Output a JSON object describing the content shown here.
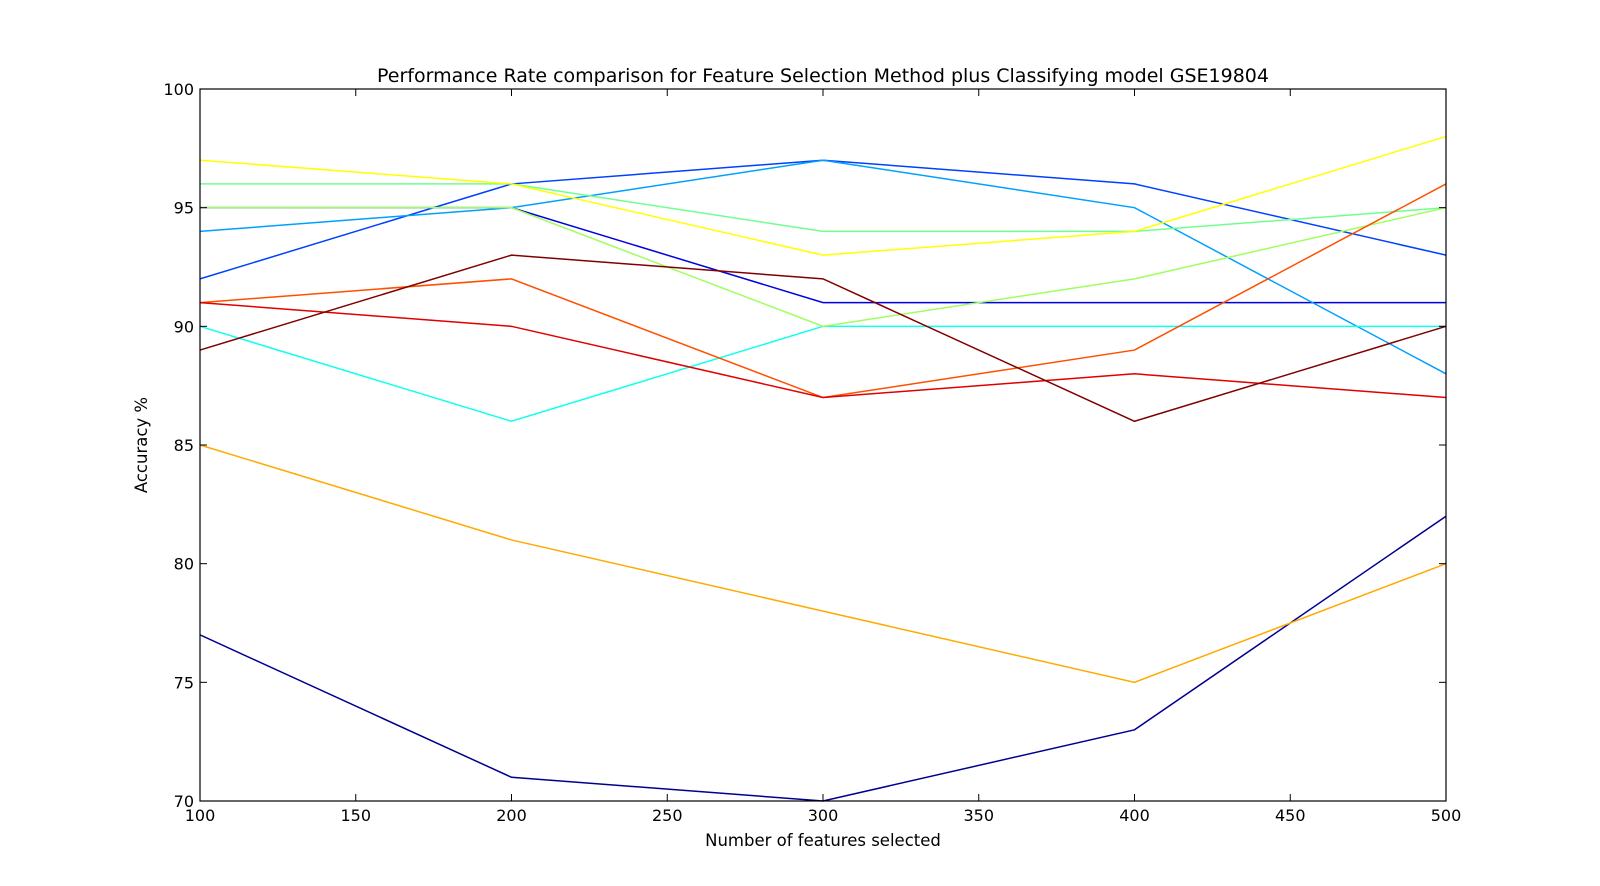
{
  "chart_data": {
    "type": "line",
    "title": "Performance Rate comparison for Feature Selection Method plus Classifying model GSE19804",
    "xlabel": "Number of features selected",
    "ylabel": "Accuracy %",
    "xlim": [
      100,
      500
    ],
    "ylim": [
      70,
      100
    ],
    "x_ticks": [
      100,
      150,
      200,
      250,
      300,
      350,
      400,
      450,
      500
    ],
    "y_ticks": [
      70,
      75,
      80,
      85,
      90,
      95,
      100
    ],
    "grid": false,
    "legend": "none",
    "x": [
      100,
      200,
      300,
      400,
      500
    ],
    "series": [
      {
        "color": "#00008f",
        "values": [
          77,
          71,
          70,
          73,
          82
        ]
      },
      {
        "color": "#0000e0",
        "values": [
          95,
          95,
          91,
          91,
          91
        ]
      },
      {
        "color": "#0040ff",
        "values": [
          92,
          96,
          97,
          96,
          93
        ]
      },
      {
        "color": "#00a0ff",
        "values": [
          94,
          95,
          97,
          95,
          88
        ]
      },
      {
        "color": "#10ffef",
        "values": [
          90,
          86,
          90,
          90,
          90
        ]
      },
      {
        "color": "#70ff8f",
        "values": [
          96,
          96,
          94,
          94,
          95
        ]
      },
      {
        "color": "#a0ff5f",
        "values": [
          95,
          95,
          90,
          92,
          95
        ]
      },
      {
        "color": "#ffff00",
        "values": [
          97,
          96,
          93,
          94,
          98
        ]
      },
      {
        "color": "#ffaa00",
        "values": [
          85,
          81,
          78,
          75,
          80
        ]
      },
      {
        "color": "#ff5000",
        "values": [
          91,
          92,
          87,
          89,
          96
        ]
      },
      {
        "color": "#e00000",
        "values": [
          91,
          90,
          87,
          88,
          87
        ]
      },
      {
        "color": "#800000",
        "values": [
          89,
          93,
          92,
          86,
          90
        ]
      }
    ]
  }
}
